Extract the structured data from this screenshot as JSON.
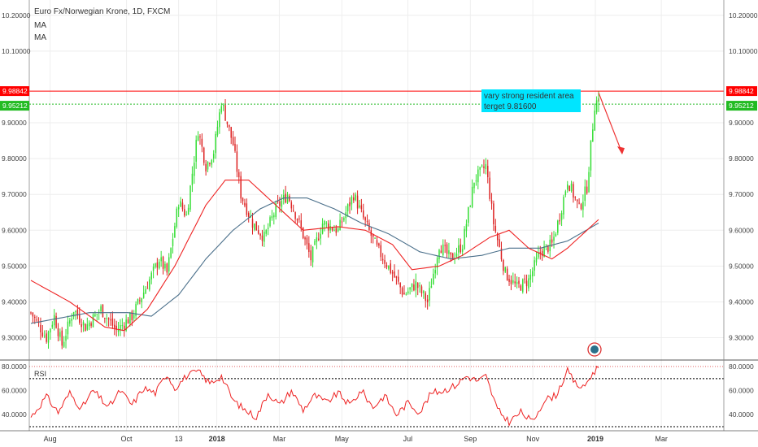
{
  "header": {
    "instrument": "Euro Fx/Norwegian Krone, 1D, FXCM",
    "indicators": [
      "MA",
      "MA"
    ]
  },
  "colors": {
    "up_candle": "#33dd33",
    "down_candle": "#dd2222",
    "ma_fast": "#ee2222",
    "ma_slow": "#4a6f8a",
    "rsi_line": "#ee2222",
    "resistance_line": "#ff0000",
    "current_price_line": "#22bb22",
    "annotation_bg": "#00e5ff",
    "arrow": "#ee3333",
    "grid": "#eeeeee"
  },
  "price_tags": {
    "resistance": "9.98842",
    "current": "9.95212"
  },
  "rsi_label": "RSI",
  "annotation": {
    "line1": "vary strong resident area",
    "line2": "terget 9.81600"
  },
  "chart_data": {
    "type": "candlestick",
    "title": "Euro Fx/Norwegian Krone, 1D, FXCM",
    "price_axis": {
      "range": [
        9.24,
        10.22
      ],
      "ticks": [
        "10.20000",
        "10.10000",
        "9.90000",
        "9.80000",
        "9.70000",
        "9.60000",
        "9.50000",
        "9.40000",
        "9.30000"
      ]
    },
    "time_axis": {
      "labels": [
        "Aug",
        "Oct",
        "13",
        "2018",
        "Mar",
        "May",
        "Jul",
        "Sep",
        "Nov",
        "2019",
        "Mar"
      ],
      "bold": [
        "2018",
        "2019"
      ]
    },
    "resistance_level": 9.98842,
    "current_price": 9.95212,
    "projection_target": 9.816,
    "price_keypoints": [
      {
        "t": 0,
        "p": 9.37
      },
      {
        "t": 8,
        "p": 9.3
      },
      {
        "t": 12,
        "p": 9.36
      },
      {
        "t": 16,
        "p": 9.28
      },
      {
        "t": 22,
        "p": 9.38
      },
      {
        "t": 28,
        "p": 9.33
      },
      {
        "t": 36,
        "p": 9.38
      },
      {
        "t": 44,
        "p": 9.32
      },
      {
        "t": 52,
        "p": 9.36
      },
      {
        "t": 60,
        "p": 9.45
      },
      {
        "t": 66,
        "p": 9.52
      },
      {
        "t": 70,
        "p": 9.48
      },
      {
        "t": 76,
        "p": 9.68
      },
      {
        "t": 80,
        "p": 9.64
      },
      {
        "t": 86,
        "p": 9.88
      },
      {
        "t": 90,
        "p": 9.78
      },
      {
        "t": 94,
        "p": 9.82
      },
      {
        "t": 98,
        "p": 9.96
      },
      {
        "t": 104,
        "p": 9.84
      },
      {
        "t": 108,
        "p": 9.7
      },
      {
        "t": 114,
        "p": 9.62
      },
      {
        "t": 120,
        "p": 9.58
      },
      {
        "t": 126,
        "p": 9.66
      },
      {
        "t": 132,
        "p": 9.7
      },
      {
        "t": 138,
        "p": 9.62
      },
      {
        "t": 144,
        "p": 9.52
      },
      {
        "t": 150,
        "p": 9.62
      },
      {
        "t": 158,
        "p": 9.6
      },
      {
        "t": 166,
        "p": 9.7
      },
      {
        "t": 172,
        "p": 9.62
      },
      {
        "t": 178,
        "p": 9.55
      },
      {
        "t": 186,
        "p": 9.48
      },
      {
        "t": 192,
        "p": 9.42
      },
      {
        "t": 198,
        "p": 9.45
      },
      {
        "t": 204,
        "p": 9.4
      },
      {
        "t": 210,
        "p": 9.56
      },
      {
        "t": 216,
        "p": 9.52
      },
      {
        "t": 222,
        "p": 9.56
      },
      {
        "t": 228,
        "p": 9.74
      },
      {
        "t": 234,
        "p": 9.78
      },
      {
        "t": 238,
        "p": 9.62
      },
      {
        "t": 244,
        "p": 9.48
      },
      {
        "t": 250,
        "p": 9.44
      },
      {
        "t": 256,
        "p": 9.46
      },
      {
        "t": 262,
        "p": 9.54
      },
      {
        "t": 268,
        "p": 9.56
      },
      {
        "t": 272,
        "p": 9.64
      },
      {
        "t": 276,
        "p": 9.74
      },
      {
        "t": 282,
        "p": 9.66
      },
      {
        "t": 286,
        "p": 9.72
      },
      {
        "t": 290,
        "p": 9.95
      },
      {
        "t": 292,
        "p": 9.97
      }
    ],
    "ma_fast_keypoints": [
      {
        "t": 0,
        "p": 9.46
      },
      {
        "t": 20,
        "p": 9.4
      },
      {
        "t": 38,
        "p": 9.33
      },
      {
        "t": 48,
        "p": 9.32
      },
      {
        "t": 60,
        "p": 9.38
      },
      {
        "t": 74,
        "p": 9.5
      },
      {
        "t": 90,
        "p": 9.67
      },
      {
        "t": 100,
        "p": 9.74
      },
      {
        "t": 112,
        "p": 9.74
      },
      {
        "t": 124,
        "p": 9.68
      },
      {
        "t": 140,
        "p": 9.6
      },
      {
        "t": 158,
        "p": 9.61
      },
      {
        "t": 172,
        "p": 9.6
      },
      {
        "t": 186,
        "p": 9.56
      },
      {
        "t": 196,
        "p": 9.49
      },
      {
        "t": 210,
        "p": 9.5
      },
      {
        "t": 222,
        "p": 9.53
      },
      {
        "t": 236,
        "p": 9.58
      },
      {
        "t": 246,
        "p": 9.6
      },
      {
        "t": 256,
        "p": 9.55
      },
      {
        "t": 268,
        "p": 9.52
      },
      {
        "t": 276,
        "p": 9.55
      },
      {
        "t": 292,
        "p": 9.63
      }
    ],
    "ma_slow_keypoints": [
      {
        "t": 0,
        "p": 9.34
      },
      {
        "t": 30,
        "p": 9.37
      },
      {
        "t": 50,
        "p": 9.37
      },
      {
        "t": 62,
        "p": 9.36
      },
      {
        "t": 76,
        "p": 9.42
      },
      {
        "t": 90,
        "p": 9.52
      },
      {
        "t": 104,
        "p": 9.6
      },
      {
        "t": 118,
        "p": 9.66
      },
      {
        "t": 130,
        "p": 9.69
      },
      {
        "t": 142,
        "p": 9.69
      },
      {
        "t": 156,
        "p": 9.66
      },
      {
        "t": 170,
        "p": 9.62
      },
      {
        "t": 184,
        "p": 9.59
      },
      {
        "t": 200,
        "p": 9.54
      },
      {
        "t": 216,
        "p": 9.52
      },
      {
        "t": 232,
        "p": 9.53
      },
      {
        "t": 246,
        "p": 9.55
      },
      {
        "t": 262,
        "p": 9.55
      },
      {
        "t": 276,
        "p": 9.57
      },
      {
        "t": 292,
        "p": 9.62
      }
    ],
    "rsi": {
      "ticks": [
        "80.0000",
        "60.0000",
        "40.0000"
      ],
      "range": [
        30,
        82
      ],
      "overbought": 70,
      "oversold": 30,
      "keypoints": [
        {
          "t": 0,
          "v": 38
        },
        {
          "t": 8,
          "v": 55
        },
        {
          "t": 14,
          "v": 42
        },
        {
          "t": 20,
          "v": 58
        },
        {
          "t": 26,
          "v": 45
        },
        {
          "t": 32,
          "v": 60
        },
        {
          "t": 40,
          "v": 46
        },
        {
          "t": 46,
          "v": 60
        },
        {
          "t": 52,
          "v": 48
        },
        {
          "t": 58,
          "v": 62
        },
        {
          "t": 64,
          "v": 58
        },
        {
          "t": 70,
          "v": 74
        },
        {
          "t": 74,
          "v": 62
        },
        {
          "t": 80,
          "v": 72
        },
        {
          "t": 86,
          "v": 76
        },
        {
          "t": 92,
          "v": 66
        },
        {
          "t": 98,
          "v": 72
        },
        {
          "t": 104,
          "v": 52
        },
        {
          "t": 110,
          "v": 44
        },
        {
          "t": 116,
          "v": 38
        },
        {
          "t": 122,
          "v": 58
        },
        {
          "t": 128,
          "v": 48
        },
        {
          "t": 134,
          "v": 60
        },
        {
          "t": 140,
          "v": 44
        },
        {
          "t": 146,
          "v": 56
        },
        {
          "t": 152,
          "v": 50
        },
        {
          "t": 158,
          "v": 58
        },
        {
          "t": 164,
          "v": 48
        },
        {
          "t": 170,
          "v": 60
        },
        {
          "t": 176,
          "v": 46
        },
        {
          "t": 182,
          "v": 56
        },
        {
          "t": 188,
          "v": 40
        },
        {
          "t": 194,
          "v": 50
        },
        {
          "t": 200,
          "v": 42
        },
        {
          "t": 206,
          "v": 58
        },
        {
          "t": 212,
          "v": 60
        },
        {
          "t": 218,
          "v": 64
        },
        {
          "t": 224,
          "v": 72
        },
        {
          "t": 230,
          "v": 68
        },
        {
          "t": 234,
          "v": 72
        },
        {
          "t": 240,
          "v": 44
        },
        {
          "t": 246,
          "v": 34
        },
        {
          "t": 252,
          "v": 42
        },
        {
          "t": 258,
          "v": 34
        },
        {
          "t": 264,
          "v": 52
        },
        {
          "t": 270,
          "v": 56
        },
        {
          "t": 276,
          "v": 76
        },
        {
          "t": 280,
          "v": 66
        },
        {
          "t": 284,
          "v": 62
        },
        {
          "t": 288,
          "v": 72
        },
        {
          "t": 292,
          "v": 80
        }
      ]
    }
  }
}
